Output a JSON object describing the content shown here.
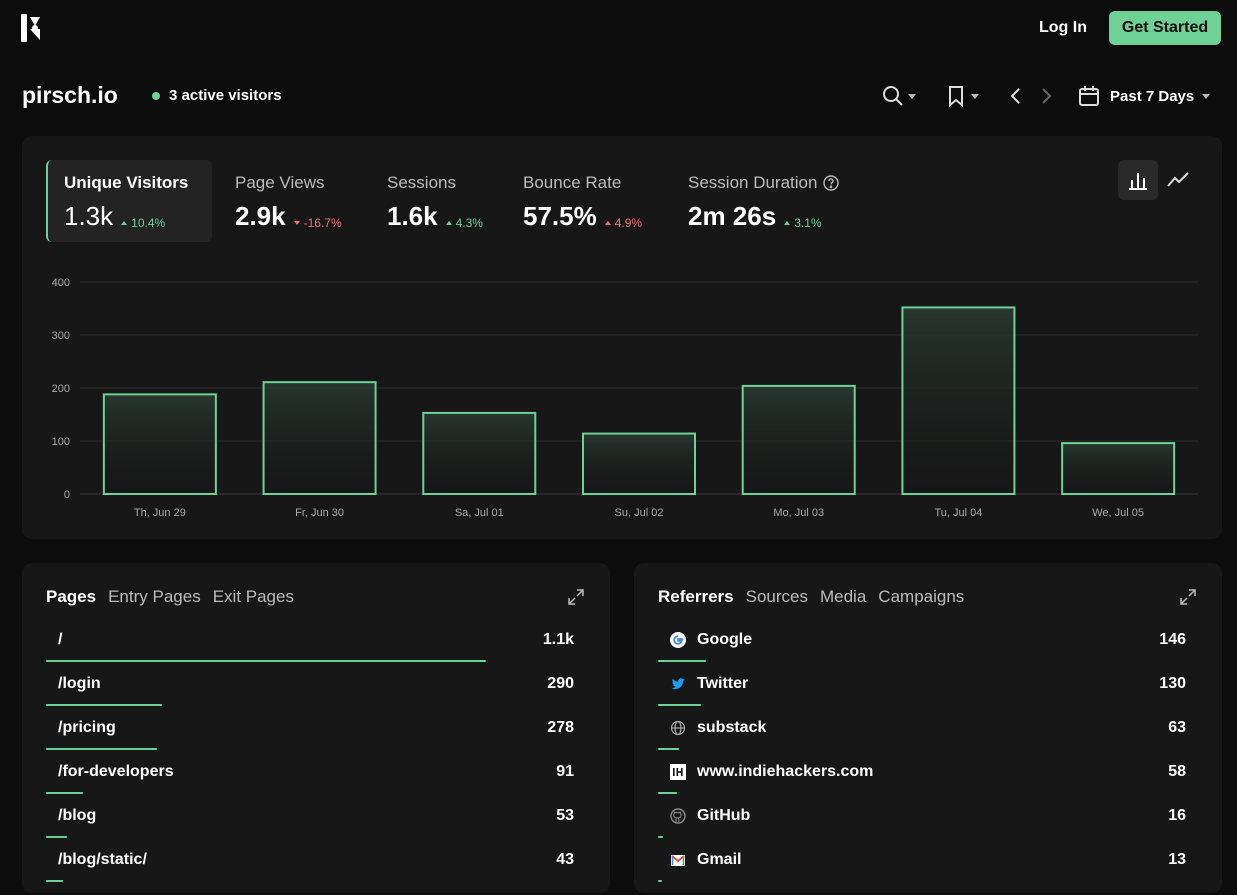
{
  "header": {
    "login": "Log In",
    "get_started": "Get Started"
  },
  "site": {
    "name": "pirsch.io",
    "active_visitors": "3 active visitors"
  },
  "toolbar": {
    "period": "Past 7 Days"
  },
  "stats": [
    {
      "label": "Unique Visitors",
      "value": "1.3k",
      "delta": "10.4%",
      "direction": "up",
      "active": true
    },
    {
      "label": "Page Views",
      "value": "2.9k",
      "delta": "-16.7%",
      "direction": "down"
    },
    {
      "label": "Sessions",
      "value": "1.6k",
      "delta": "4.3%",
      "direction": "up"
    },
    {
      "label": "Bounce Rate",
      "value": "57.5%",
      "delta": "4.9%",
      "direction": "up_bad"
    },
    {
      "label": "Session Duration",
      "value": "2m 26s",
      "delta": "3.1%",
      "direction": "up",
      "help": true
    }
  ],
  "colors": {
    "accent": "#6fd196",
    "negative": "#f07171",
    "card": "#171717",
    "background": "#0c0c0c"
  },
  "chart_data": {
    "type": "bar",
    "categories": [
      "Th, Jun 29",
      "Fr, Jun 30",
      "Sa, Jul 01",
      "Su, Jul 02",
      "Mo, Jul 03",
      "Tu, Jul 04",
      "We, Jul 05"
    ],
    "values": [
      188,
      211,
      153,
      114,
      204,
      352,
      96
    ],
    "ylim": [
      0,
      400
    ],
    "yticks": [
      0,
      100,
      200,
      300,
      400
    ],
    "grid": true
  },
  "pages_panel": {
    "tabs": [
      "Pages",
      "Entry Pages",
      "Exit Pages"
    ],
    "rows": [
      {
        "label": "/",
        "value": "1.1k",
        "share": 1.0
      },
      {
        "label": "/login",
        "value": "290",
        "share": 0.264
      },
      {
        "label": "/pricing",
        "value": "278",
        "share": 0.253
      },
      {
        "label": "/for-developers",
        "value": "91",
        "share": 0.083
      },
      {
        "label": "/blog",
        "value": "53",
        "share": 0.048
      },
      {
        "label": "/blog/static/",
        "value": "43",
        "share": 0.039
      }
    ]
  },
  "referrers_panel": {
    "tabs": [
      "Referrers",
      "Sources",
      "Media",
      "Campaigns"
    ],
    "rows": [
      {
        "label": "Google",
        "value": "146",
        "share": 0.11,
        "icon": "google-icon"
      },
      {
        "label": "Twitter",
        "value": "130",
        "share": 0.098,
        "icon": "twitter-icon"
      },
      {
        "label": "substack",
        "value": "63",
        "share": 0.047,
        "icon": "globe-icon"
      },
      {
        "label": "www.indiehackers.com",
        "value": "58",
        "share": 0.044,
        "icon": "indiehackers-icon"
      },
      {
        "label": "GitHub",
        "value": "16",
        "share": 0.012,
        "icon": "github-icon"
      },
      {
        "label": "Gmail",
        "value": "13",
        "share": 0.01,
        "icon": "gmail-icon"
      }
    ]
  }
}
